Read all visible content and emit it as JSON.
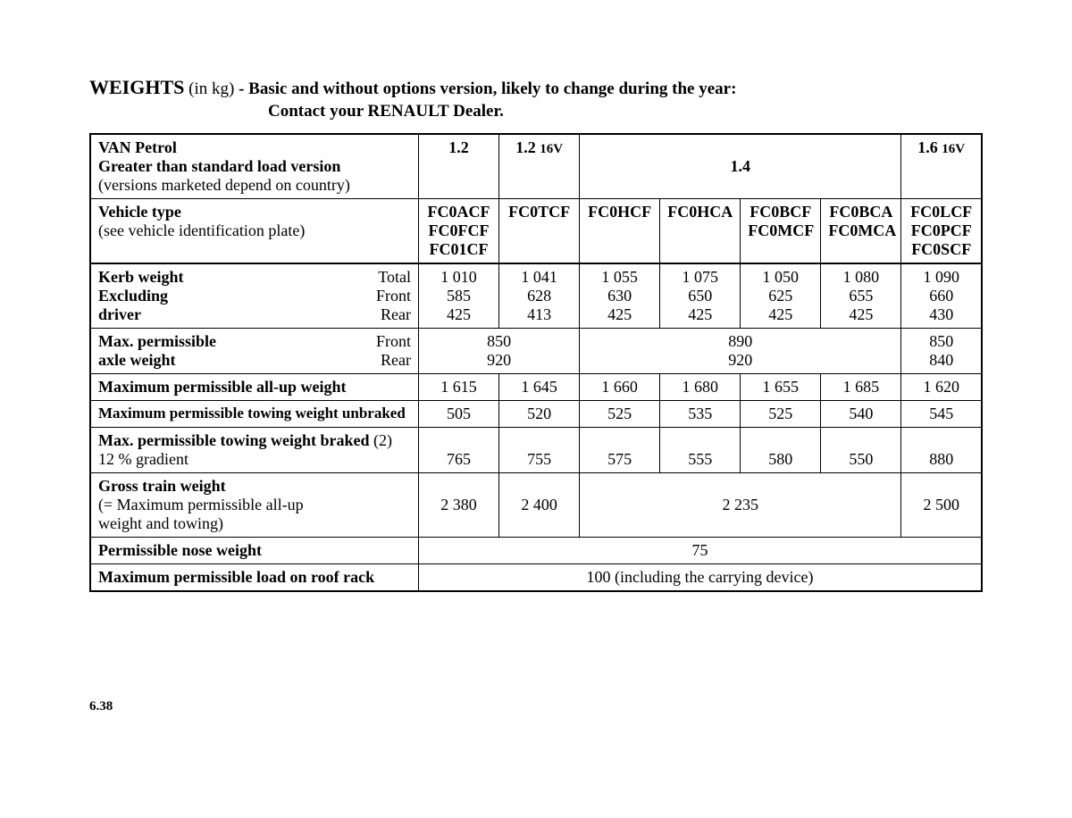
{
  "heading": {
    "title": "WEIGHTS",
    "unit": "(in kg)",
    "note1": "- Basic and without options version, likely to change during the year:",
    "note2": "Contact your RENAULT Dealer."
  },
  "header_row": {
    "label1": "VAN Petrol",
    "label2": "Greater than standard load version",
    "label3": "(versions marketed depend on country)",
    "c1": "1.2",
    "c2_a": "1.2",
    "c2_b": "16V",
    "c3": "1.4",
    "c4_a": "1.6",
    "c4_b": "16V"
  },
  "vehicle_type": {
    "label1": "Vehicle type",
    "label2": "(see vehicle identification plate)",
    "c1a": "FC0ACF",
    "c1b": "FC0FCF",
    "c1c": "FC01CF",
    "c2a": "FC0TCF",
    "c3a": "FC0HCF",
    "c4a": "FC0HCA",
    "c5a": "FC0BCF",
    "c5b": "FC0MCF",
    "c6a": "FC0BCA",
    "c6b": "FC0MCA",
    "c7a": "FC0LCF",
    "c7b": "FC0PCF",
    "c7c": "FC0SCF"
  },
  "kerb": {
    "l1": "Kerb weight",
    "r1": "Total",
    "l2": "Excluding",
    "r2": "Front",
    "l3": "driver",
    "r3": "Rear",
    "c1": {
      "t": "1 010",
      "f": "585",
      "r": "425"
    },
    "c2": {
      "t": "1 041",
      "f": "628",
      "r": "413"
    },
    "c3": {
      "t": "1 055",
      "f": "630",
      "r": "425"
    },
    "c4": {
      "t": "1 075",
      "f": "650",
      "r": "425"
    },
    "c5": {
      "t": "1 050",
      "f": "625",
      "r": "425"
    },
    "c6": {
      "t": "1 080",
      "f": "655",
      "r": "425"
    },
    "c7": {
      "t": "1 090",
      "f": "660",
      "r": "430"
    }
  },
  "axle": {
    "l1": "Max. permissible",
    "r1": "Front",
    "l2": "axle weight",
    "r2": "Rear",
    "g1": {
      "f": "850",
      "r": "920"
    },
    "g2": {
      "f": "890",
      "r": "920"
    },
    "g3": {
      "f": "850",
      "r": "840"
    }
  },
  "maxall": {
    "label": "Maximum permissible all-up weight",
    "c1": "1 615",
    "c2": "1 645",
    "c3": "1 660",
    "c4": "1 680",
    "c5": "1 655",
    "c6": "1 685",
    "c7": "1 620"
  },
  "unbraked": {
    "label": "Maximum permissible towing weight unbraked",
    "c1": "505",
    "c2": "520",
    "c3": "525",
    "c4": "535",
    "c5": "525",
    "c6": "540",
    "c7": "545"
  },
  "braked": {
    "label1": "Max. permissible towing weight braked",
    "note": "(2)",
    "label2": "12 % gradient",
    "c1": "765",
    "c2": "755",
    "c3": "575",
    "c4": "555",
    "c5": "580",
    "c6": "550",
    "c7": "880"
  },
  "gross": {
    "label1": "Gross train weight",
    "label2": "(= Maximum permissible all-up",
    "label3": "weight and towing)",
    "c1": "2 380",
    "c2": "2 400",
    "g2": "2 235",
    "c7": "2 500"
  },
  "nose": {
    "label": "Permissible nose weight",
    "val": "75"
  },
  "roof": {
    "label": "Maximum permissible load on roof rack",
    "val": "100 (including the carrying device)"
  },
  "page_number": "6.38"
}
